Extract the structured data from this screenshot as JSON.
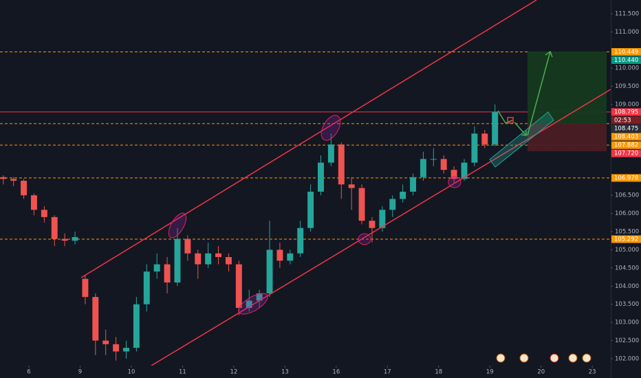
{
  "chart_data": {
    "type": "candlestick",
    "x": [
      -0.5,
      -0.3,
      -0.1,
      0.1,
      0.3,
      0.5,
      0.7,
      0.9,
      1.1,
      1.3,
      1.5,
      1.7,
      1.9,
      2.1,
      2.3,
      2.5,
      2.7,
      2.9,
      3.1,
      3.3,
      3.5,
      3.7,
      3.9,
      4.1,
      4.3,
      4.5,
      4.7,
      4.9,
      5.1,
      5.3,
      5.5,
      5.7,
      5.9,
      6.1,
      6.3,
      6.5,
      6.7,
      6.9,
      7.1,
      7.3,
      7.5,
      7.7,
      7.9,
      8.1,
      8.3,
      8.5,
      8.7,
      8.9,
      9.1
    ],
    "open": [
      107.0,
      106.95,
      106.9,
      106.5,
      106.1,
      105.9,
      105.3,
      105.25,
      104.2,
      103.7,
      102.5,
      102.4,
      102.2,
      102.3,
      103.5,
      104.4,
      104.6,
      104.1,
      105.3,
      104.9,
      104.6,
      104.9,
      104.8,
      104.6,
      103.4,
      103.6,
      103.8,
      105.0,
      104.7,
      104.9,
      105.6,
      106.6,
      107.4,
      107.9,
      106.8,
      106.7,
      105.8,
      105.6,
      106.1,
      106.4,
      106.6,
      107.0,
      107.5,
      107.5,
      107.2,
      106.95,
      107.4,
      108.2,
      107.9
    ],
    "high": [
      107.05,
      107.0,
      106.95,
      106.55,
      106.2,
      105.95,
      105.45,
      105.5,
      104.3,
      103.8,
      102.8,
      102.6,
      102.5,
      103.7,
      104.6,
      104.9,
      104.8,
      105.6,
      105.4,
      105.0,
      105.2,
      105.1,
      104.9,
      104.7,
      103.9,
      103.9,
      105.8,
      105.2,
      105.0,
      105.8,
      106.8,
      107.6,
      108.2,
      107.95,
      107.0,
      106.8,
      105.9,
      106.2,
      106.5,
      106.8,
      107.1,
      107.7,
      107.8,
      107.6,
      107.3,
      107.5,
      108.4,
      108.3,
      109.0
    ],
    "low": [
      106.8,
      106.75,
      106.4,
      105.95,
      105.75,
      105.1,
      105.1,
      105.15,
      103.5,
      102.1,
      102.1,
      101.95,
      102.0,
      102.2,
      103.3,
      104.2,
      103.8,
      104.0,
      104.7,
      104.2,
      104.5,
      104.6,
      104.4,
      103.2,
      103.3,
      103.4,
      103.7,
      104.5,
      104.6,
      104.8,
      105.5,
      106.5,
      107.3,
      106.4,
      106.1,
      105.7,
      105.2,
      105.5,
      105.9,
      106.3,
      106.5,
      106.9,
      107.3,
      107.1,
      106.85,
      106.9,
      107.3,
      107.8,
      107.85
    ],
    "close": [
      106.95,
      106.9,
      106.5,
      106.1,
      105.9,
      105.3,
      105.25,
      105.35,
      103.7,
      102.5,
      102.4,
      102.2,
      102.3,
      103.5,
      104.4,
      104.6,
      104.1,
      105.3,
      104.9,
      104.6,
      104.9,
      104.8,
      104.6,
      103.4,
      103.6,
      103.8,
      105.0,
      104.7,
      104.9,
      105.6,
      106.6,
      107.4,
      107.9,
      106.8,
      106.7,
      105.8,
      105.6,
      106.1,
      106.4,
      106.6,
      107.0,
      107.5,
      107.5,
      107.2,
      106.95,
      107.4,
      108.2,
      107.9,
      108.795
    ],
    "up_color": "#26a69a",
    "down_color": "#ef5350",
    "xlim": [
      -0.564,
      11.36
    ],
    "ylim": [
      101.81,
      111.878
    ],
    "xticks": [
      {
        "value": 0,
        "label": "6"
      },
      {
        "value": 1,
        "label": "9"
      },
      {
        "value": 2,
        "label": "10"
      },
      {
        "value": 3,
        "label": "11"
      },
      {
        "value": 4,
        "label": "12"
      },
      {
        "value": 5,
        "label": "13"
      },
      {
        "value": 6,
        "label": "16"
      },
      {
        "value": 7,
        "label": "17"
      },
      {
        "value": 8,
        "label": "18"
      },
      {
        "value": 9,
        "label": "19"
      },
      {
        "value": 10,
        "label": "20"
      },
      {
        "value": 11,
        "label": "23"
      }
    ],
    "yticks": [
      {
        "value": 111.5,
        "label": "111.500"
      },
      {
        "value": 111,
        "label": "111.000"
      },
      {
        "value": 110,
        "label": "110.000"
      },
      {
        "value": 109.5,
        "label": "109.500"
      },
      {
        "value": 109,
        "label": "109.000"
      },
      {
        "value": 106.5,
        "label": "106.500"
      },
      {
        "value": 106,
        "label": "106.000"
      },
      {
        "value": 105.5,
        "label": "105.500"
      },
      {
        "value": 105,
        "label": "105.000"
      },
      {
        "value": 104.5,
        "label": "104.500"
      },
      {
        "value": 104,
        "label": "104.000"
      },
      {
        "value": 103.5,
        "label": "103.500"
      },
      {
        "value": 103,
        "label": "103.000"
      },
      {
        "value": 102.5,
        "label": "102.500"
      },
      {
        "value": 102,
        "label": "102.000"
      }
    ],
    "level_line_color": "#ff9800",
    "price_labels": [
      {
        "value": 110.449,
        "color": "#ff9800",
        "line": "dashed"
      },
      {
        "value": 110.44,
        "label": "110.440",
        "color": "#089981"
      },
      {
        "value": 108.795,
        "color": "#f23645",
        "line": "solid"
      },
      {
        "value": 108.475,
        "color": "#2a2e39",
        "line": "dashed"
      },
      {
        "value": 108.403,
        "color": "#ff9800"
      },
      {
        "value": 107.882,
        "color": "#ff9800",
        "line": "dashed"
      },
      {
        "value": 107.72,
        "label": "107.720",
        "color": "#f23645"
      },
      {
        "value": 106.978,
        "color": "#ff9800",
        "line": "dashed"
      },
      {
        "value": 105.292,
        "color": "#ff9800",
        "line": "dashed"
      }
    ],
    "countdown": "02:53",
    "countdown_color": "#7a1f25"
  }
}
